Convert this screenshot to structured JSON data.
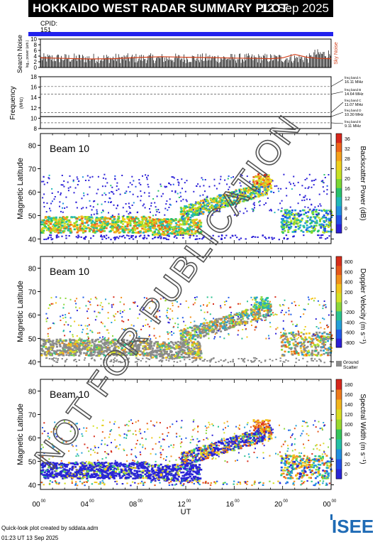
{
  "header": {
    "title": "HOKKAIDO WEST RADAR SUMMARY PLOT",
    "date": "12 Sep 2025"
  },
  "cpid": {
    "label": "CPID:",
    "value": "151"
  },
  "noise_panel": {
    "ylabel": "Search Noise",
    "unit": "log₁₀ power (arb.)",
    "right_label": "Sky Noise",
    "yticks": [
      "0",
      "2",
      "4",
      "6",
      "8",
      "10"
    ]
  },
  "freq_panel": {
    "ylabel": "Frequency",
    "unit": "(MHz)",
    "yticks": [
      "8",
      "10",
      "12",
      "14",
      "16",
      "18"
    ],
    "bands": [
      {
        "name": "freq band A",
        "freq": "16.11 MHz"
      },
      {
        "name": "freq band B",
        "freq": "14.64 MHz"
      },
      {
        "name": "freq band C",
        "freq": "11.07 MHz"
      },
      {
        "name": "freq band D",
        "freq": "10.30 MHz"
      },
      {
        "name": "freq band E",
        "freq": "9.11 MHz"
      }
    ]
  },
  "panels": [
    {
      "beam": "Beam 10",
      "ylabel": "Magnetic Latitude",
      "cbar_label": "Backscatter Power (dB)",
      "cbar_ticks": [
        "0",
        "4",
        "8",
        "12",
        "16",
        "20",
        "24",
        "28",
        "32",
        "36"
      ]
    },
    {
      "beam": "Beam 10",
      "ylabel": "Magnetic Latitude",
      "cbar_label": "Doppler Velocity (m s⁻¹)",
      "cbar_ticks": [
        "-800",
        "-600",
        "-400",
        "-200",
        "0",
        "200",
        "400",
        "600",
        "800"
      ],
      "ground_label": "Ground",
      "ground_label2": "Scatter"
    },
    {
      "beam": "Beam 10",
      "ylabel": "Magnetic Latitude",
      "cbar_label": "Spectral Width (m s⁻¹)",
      "cbar_ticks": [
        "0",
        "20",
        "40",
        "60",
        "80",
        "100",
        "120",
        "140",
        "160",
        "180"
      ]
    }
  ],
  "lat_ticks": [
    "40",
    "50",
    "60",
    "70",
    "80"
  ],
  "x_axis": {
    "label": "UT",
    "ticks": [
      "00",
      "04",
      "08",
      "12",
      "16",
      "20",
      "00"
    ],
    "tick_sup": "00"
  },
  "footer": {
    "line1": "Quick-look plot created by sddata.adm",
    "line2": "01:23 UT 13 Sep 2025"
  },
  "logo": {
    "text": "ISEE"
  },
  "watermark": "NOT FOR PUBLICATION",
  "chart_data": [
    {
      "type": "line",
      "title": "Search Noise",
      "ylim": [
        0,
        10
      ],
      "xlim_hours_ut": [
        0,
        24
      ],
      "series": [
        {
          "name": "Sky Noise",
          "x": [
            0,
            2,
            4,
            6,
            8,
            10,
            12,
            14,
            16,
            18,
            19,
            20,
            21,
            22,
            23,
            24
          ],
          "values": [
            3.4,
            3.2,
            3.0,
            3.1,
            3.5,
            3.8,
            3.6,
            3.5,
            3.3,
            3.2,
            3.1,
            3.4,
            4.6,
            3.6,
            3.2,
            3.1
          ]
        }
      ]
    },
    {
      "type": "line",
      "title": "Frequency",
      "ylim": [
        8,
        18
      ],
      "unit": "MHz",
      "x": [
        0,
        24
      ],
      "series": [
        {
          "name": "Frequency",
          "values": [
            10.3,
            10.3
          ]
        }
      ]
    },
    {
      "type": "heatmap",
      "title": "Backscatter Power",
      "quantity": "Backscatter Power (dB)",
      "ylim": [
        38,
        85
      ],
      "zlim": [
        0,
        36
      ],
      "xlim_hours_ut": [
        0,
        24
      ],
      "features": [
        {
          "desc": "main band",
          "lat_range": [
            44,
            50
          ],
          "ut_range": [
            0,
            13
          ]
        },
        {
          "desc": "rising patch",
          "lat_range": [
            50,
            68
          ],
          "ut_range": [
            12,
            19
          ]
        }
      ]
    },
    {
      "type": "heatmap",
      "title": "Doppler Velocity",
      "quantity": "Doppler Velocity (m s-1)",
      "ylim": [
        38,
        85
      ],
      "zlim": [
        -800,
        800
      ],
      "xlim_hours_ut": [
        0,
        24
      ]
    },
    {
      "type": "heatmap",
      "title": "Spectral Width",
      "quantity": "Spectral Width (m s-1)",
      "ylim": [
        38,
        85
      ],
      "zlim": [
        0,
        180
      ],
      "xlim_hours_ut": [
        0,
        24
      ]
    }
  ]
}
